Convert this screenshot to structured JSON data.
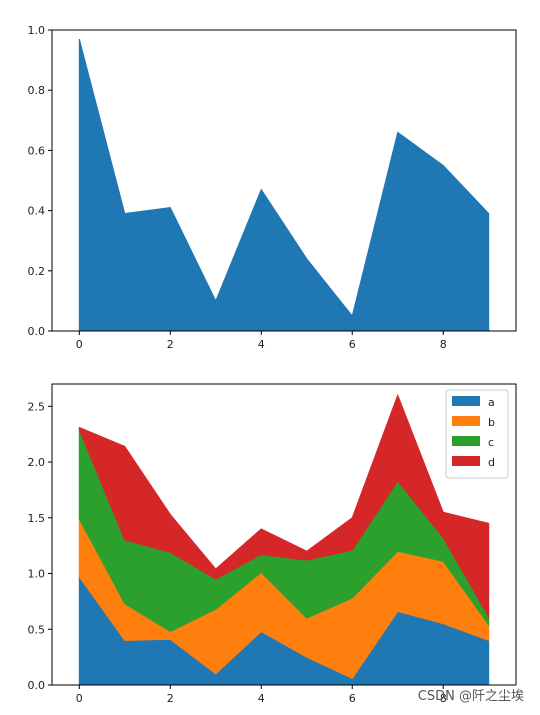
{
  "chart_data": [
    {
      "type": "area",
      "x": [
        0,
        1,
        2,
        3,
        4,
        5,
        6,
        7,
        8,
        9
      ],
      "series": [
        {
          "values": [
            0.97,
            0.39,
            0.41,
            0.1,
            0.47,
            0.24,
            0.05,
            0.66,
            0.55,
            0.39
          ],
          "color": "#1f77b4"
        }
      ],
      "xlim": [
        -0.6,
        9.6
      ],
      "ylim": [
        0,
        1.0
      ],
      "xticks": [
        "0",
        "2",
        "4",
        "6",
        "8"
      ],
      "yticks": [
        "0.0",
        "0.2",
        "0.4",
        "0.6",
        "0.8",
        "1.0"
      ],
      "stacked": false,
      "grid": false
    },
    {
      "type": "area",
      "stacked": true,
      "x": [
        0,
        1,
        2,
        3,
        4,
        5,
        6,
        7,
        8,
        9
      ],
      "series": [
        {
          "name": "a",
          "color": "#1f77b4",
          "values": [
            0.97,
            0.4,
            0.41,
            0.1,
            0.48,
            0.25,
            0.06,
            0.66,
            0.55,
            0.4
          ]
        },
        {
          "name": "b",
          "color": "#ff7f0e",
          "values": [
            0.52,
            0.33,
            0.07,
            0.58,
            0.53,
            0.35,
            0.72,
            0.54,
            0.56,
            0.14
          ]
        },
        {
          "name": "c",
          "color": "#2ca02c",
          "values": [
            0.8,
            0.57,
            0.71,
            0.27,
            0.16,
            0.52,
            0.43,
            0.63,
            0.21,
            0.07
          ]
        },
        {
          "name": "d",
          "color": "#d62728",
          "values": [
            0.02,
            0.84,
            0.34,
            0.09,
            0.23,
            0.08,
            0.29,
            0.77,
            0.23,
            0.84
          ]
        }
      ],
      "xlim": [
        -0.6,
        9.6
      ],
      "ylim": [
        0,
        2.7
      ],
      "xticks": [
        "0",
        "2",
        "4",
        "6",
        "8"
      ],
      "yticks": [
        "0.0",
        "0.5",
        "1.0",
        "1.5",
        "2.0",
        "2.5"
      ],
      "legend": "top-right",
      "grid": false
    }
  ],
  "watermark": "CSDN @阡之尘埃"
}
